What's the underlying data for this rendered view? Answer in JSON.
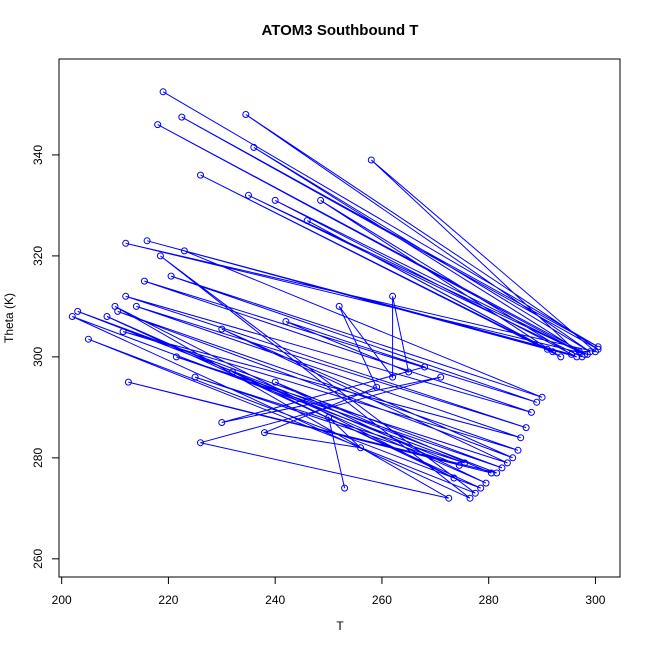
{
  "chart_data": {
    "type": "line",
    "title": "ATOM3 Southbound T",
    "xlabel": "T",
    "ylabel": "Theta (K)",
    "xlim": [
      199.5,
      304.6
    ],
    "ylim": [
      256.4,
      359.0
    ],
    "x_ticks": [
      200,
      220,
      240,
      260,
      280,
      300
    ],
    "y_ticks": [
      260,
      280,
      300,
      320,
      340
    ],
    "grid": false,
    "legend": "none",
    "color": "#0000ff",
    "marker": "open-circle",
    "series": [
      {
        "x": [
          219,
          300.5,
          222.5,
          300.5,
          234.5,
          299,
          236,
          298,
          235,
          297.5,
          258,
          300,
          212,
          298.5,
          218,
          297,
          240,
          296.5,
          216,
          295.5,
          248.5,
          293.5,
          226,
          292,
          246,
          291,
          223,
          290,
          220.5,
          289,
          215.5,
          288,
          212,
          287,
          214,
          286,
          211.5,
          285.5,
          210.5,
          284.5,
          230,
          283.5,
          221.5,
          282.5,
          203,
          281.5,
          212.5,
          280.5,
          240,
          279.5,
          208.5,
          278.5,
          205,
          277.5,
          218.5,
          276.5,
          202,
          275.5,
          225,
          274.5,
          232,
          273.5,
          210,
          272.5,
          226,
          271,
          230,
          268,
          242,
          265,
          262,
          262,
          252,
          259,
          238,
          256,
          250,
          253
        ],
        "y": [
          352.5,
          302,
          347.5,
          301.5,
          348,
          301,
          341.5,
          300.5,
          332,
          300,
          339,
          301,
          322.5,
          300.5,
          346,
          301,
          331,
          300,
          323,
          300.5,
          331,
          300,
          336,
          301,
          327,
          301.5,
          321,
          292,
          316,
          291,
          315,
          289,
          312,
          286,
          310,
          284,
          305,
          281.5,
          309,
          280,
          305.5,
          279,
          300,
          278,
          309,
          277,
          295,
          277,
          295,
          275,
          308,
          274,
          303.5,
          273,
          320,
          272,
          308,
          279,
          296,
          278.5,
          297,
          276,
          310,
          272,
          283,
          296,
          287,
          298,
          307,
          297,
          312,
          296,
          310,
          294,
          285,
          282,
          288,
          274
        ]
      }
    ]
  }
}
